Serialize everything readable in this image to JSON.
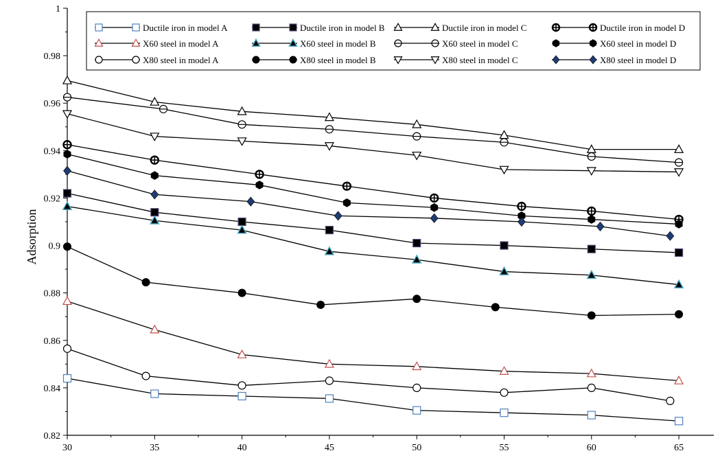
{
  "chart_data": {
    "type": "line",
    "title": "",
    "xlabel": "",
    "ylabel": "Adsorption",
    "xlim": [
      30,
      67
    ],
    "ylim": [
      0.82,
      1
    ],
    "xticks": [
      30,
      35,
      40,
      45,
      50,
      55,
      60,
      65
    ],
    "yticks": [
      0.82,
      0.84,
      0.86,
      0.88,
      0.9,
      0.92,
      0.94,
      0.96,
      0.98,
      1
    ],
    "ytick_labels": [
      "0.82",
      "0.84",
      "0.86",
      "0.88",
      "0.9",
      "0.92",
      "0.94",
      "0.96",
      "0.98",
      "1"
    ],
    "grid": false,
    "legend_position": "top",
    "series": [
      {
        "name": "Ductile iron in model A",
        "marker": "square-open",
        "color": "#4f81bd",
        "points": [
          [
            30,
            0.844
          ],
          [
            35,
            0.8375
          ],
          [
            40,
            0.8365
          ],
          [
            45,
            0.8355
          ],
          [
            50,
            0.8305
          ],
          [
            55,
            0.8295
          ],
          [
            60,
            0.8285
          ],
          [
            65,
            0.826
          ]
        ]
      },
      {
        "name": "Ductile iron in model B",
        "marker": "square-filled",
        "color": "#000000",
        "points": [
          [
            30,
            0.922
          ],
          [
            35,
            0.914
          ],
          [
            40,
            0.91
          ],
          [
            45,
            0.9065
          ],
          [
            50,
            0.901
          ],
          [
            55,
            0.9
          ],
          [
            60,
            0.8985
          ],
          [
            65,
            0.897
          ]
        ]
      },
      {
        "name": "Ductile iron in model C",
        "marker": "triangle-open",
        "color": "#000000",
        "points": [
          [
            30,
            0.9695
          ],
          [
            35,
            0.9605
          ],
          [
            40,
            0.9565
          ],
          [
            45,
            0.954
          ],
          [
            50,
            0.951
          ],
          [
            55,
            0.9465
          ],
          [
            60,
            0.9405
          ],
          [
            65,
            0.9405
          ]
        ]
      },
      {
        "name": "Ductile iron in model D",
        "marker": "cross-circle",
        "color": "#000000",
        "points": [
          [
            30,
            0.9425
          ],
          [
            35,
            0.936
          ],
          [
            41,
            0.93
          ],
          [
            46,
            0.925
          ],
          [
            51,
            0.92
          ],
          [
            56,
            0.9165
          ],
          [
            60,
            0.9145
          ],
          [
            65,
            0.911
          ]
        ]
      },
      {
        "name": "X60 steel in model A",
        "marker": "triangle-open",
        "color": "#c0504d",
        "points": [
          [
            30,
            0.8765
          ],
          [
            35,
            0.8645
          ],
          [
            40,
            0.854
          ],
          [
            45,
            0.85
          ],
          [
            50,
            0.849
          ],
          [
            55,
            0.847
          ],
          [
            60,
            0.846
          ],
          [
            65,
            0.843
          ]
        ]
      },
      {
        "name": "X60 steel in model  B",
        "marker": "triangle-filled",
        "color": "#4bacc6",
        "points": [
          [
            30,
            0.9165
          ],
          [
            35,
            0.9105
          ],
          [
            40,
            0.9065
          ],
          [
            45,
            0.8975
          ],
          [
            50,
            0.894
          ],
          [
            55,
            0.889
          ],
          [
            60,
            0.8875
          ],
          [
            65,
            0.8835
          ]
        ]
      },
      {
        "name": "X60 steel in model C",
        "marker": "circle-slash",
        "color": "#000000",
        "points": [
          [
            30,
            0.9625
          ],
          [
            35.5,
            0.9575
          ],
          [
            40,
            0.951
          ],
          [
            45,
            0.949
          ],
          [
            50,
            0.946
          ],
          [
            55,
            0.9435
          ],
          [
            60,
            0.9375
          ],
          [
            65,
            0.935
          ]
        ]
      },
      {
        "name": "X60 steel in model D",
        "marker": "hexagon-filled",
        "color": "#000000",
        "points": [
          [
            30,
            0.9385
          ],
          [
            35,
            0.9295
          ],
          [
            41,
            0.9255
          ],
          [
            46,
            0.918
          ],
          [
            51,
            0.916
          ],
          [
            56,
            0.9125
          ],
          [
            60,
            0.911
          ],
          [
            65,
            0.909
          ]
        ]
      },
      {
        "name": "X80 steel in model A",
        "marker": "circle-open",
        "color": "#000000",
        "points": [
          [
            30,
            0.8565
          ],
          [
            34.5,
            0.845
          ],
          [
            40,
            0.841
          ],
          [
            45,
            0.843
          ],
          [
            50,
            0.84
          ],
          [
            55,
            0.838
          ],
          [
            60,
            0.84
          ],
          [
            64.5,
            0.8345
          ]
        ]
      },
      {
        "name": "X80 steel in model B",
        "marker": "circle-filled",
        "color": "#000000",
        "points": [
          [
            30,
            0.8995
          ],
          [
            34.5,
            0.8845
          ],
          [
            40,
            0.88
          ],
          [
            44.5,
            0.875
          ],
          [
            50,
            0.8775
          ],
          [
            54.5,
            0.874
          ],
          [
            60,
            0.8705
          ],
          [
            65,
            0.871
          ]
        ]
      },
      {
        "name": "X80 steel in model  C",
        "marker": "triangle-down-open",
        "color": "#000000",
        "points": [
          [
            30,
            0.9555
          ],
          [
            35,
            0.946
          ],
          [
            40,
            0.944
          ],
          [
            45,
            0.942
          ],
          [
            50,
            0.938
          ],
          [
            55,
            0.932
          ],
          [
            60,
            0.9315
          ],
          [
            65,
            0.931
          ]
        ]
      },
      {
        "name": "X80 steel in model D",
        "marker": "diamond-filled",
        "color": "#1f3b73",
        "points": [
          [
            30,
            0.9315
          ],
          [
            35,
            0.9215
          ],
          [
            40.5,
            0.9185
          ],
          [
            45.5,
            0.9125
          ],
          [
            51,
            0.9115
          ],
          [
            56,
            0.91
          ],
          [
            60.5,
            0.908
          ],
          [
            64.5,
            0.904
          ]
        ]
      }
    ]
  }
}
